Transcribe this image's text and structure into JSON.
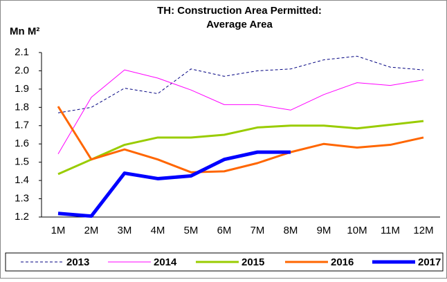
{
  "chart_data": {
    "type": "line",
    "title": [
      "TH: Construction Area Permitted:",
      "Average Area"
    ],
    "ylabel": "Mn M²",
    "categories": [
      "1M",
      "2M",
      "3M",
      "4M",
      "5M",
      "6M",
      "7M",
      "8M",
      "9M",
      "10M",
      "11M",
      "12M"
    ],
    "series": [
      {
        "name": "2013",
        "color": "#000080",
        "width": 1,
        "dash": true,
        "values": [
          1.77,
          1.8,
          1.905,
          1.875,
          2.01,
          1.97,
          2.0,
          2.01,
          2.06,
          2.08,
          2.02,
          2.005
        ]
      },
      {
        "name": "2014",
        "color": "#ff00ff",
        "width": 1,
        "dash": false,
        "values": [
          1.545,
          1.855,
          2.005,
          1.96,
          1.895,
          1.815,
          1.815,
          1.785,
          1.87,
          1.935,
          1.92,
          1.95
        ]
      },
      {
        "name": "2015",
        "color": "#99cc00",
        "width": 3,
        "dash": false,
        "values": [
          1.435,
          1.515,
          1.595,
          1.635,
          1.635,
          1.65,
          1.69,
          1.7,
          1.7,
          1.685,
          1.705,
          1.725
        ]
      },
      {
        "name": "2016",
        "color": "#ff6600",
        "width": 3,
        "dash": false,
        "values": [
          1.805,
          1.515,
          1.57,
          1.515,
          1.445,
          1.45,
          1.495,
          1.555,
          1.6,
          1.58,
          1.595,
          1.635
        ]
      },
      {
        "name": "2017",
        "color": "#0000ff",
        "width": 5,
        "dash": false,
        "values": [
          1.22,
          1.205,
          1.44,
          1.41,
          1.425,
          1.515,
          1.555,
          1.555,
          null,
          null,
          null,
          null
        ]
      }
    ],
    "ylim": [
      1.2,
      2.1
    ],
    "yticks": [
      {
        "value": 1.2,
        "label": "1.2"
      },
      {
        "value": 1.3,
        "label": "1.3"
      },
      {
        "value": 1.4,
        "label": "1.4"
      },
      {
        "value": 1.5,
        "label": "1.5"
      },
      {
        "value": 1.6,
        "label": "1.6"
      },
      {
        "value": 1.7,
        "label": "1.7"
      },
      {
        "value": 1.8,
        "label": "1.8"
      },
      {
        "value": 1.9,
        "label": "1.9"
      },
      {
        "value": 2.0,
        "label": "2.0"
      },
      {
        "value": 2.1,
        "label": "2.1"
      }
    ],
    "grid": false,
    "legend": "bottom"
  }
}
